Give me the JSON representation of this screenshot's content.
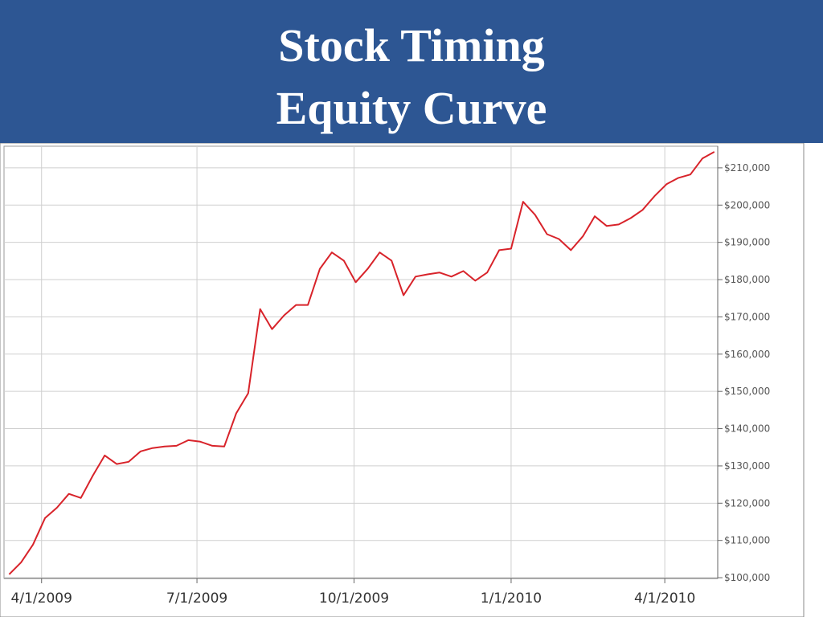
{
  "slide": {
    "title_lines": [
      "Stock Timing",
      "Equity Curve"
    ]
  },
  "chart_data": {
    "type": "line",
    "color": "#d8232a",
    "grid": true,
    "y_axis_side": "right",
    "x": [
      "2009-03-13",
      "2009-03-20",
      "2009-03-27",
      "2009-04-03",
      "2009-04-10",
      "2009-04-17",
      "2009-04-24",
      "2009-05-01",
      "2009-05-08",
      "2009-05-15",
      "2009-05-22",
      "2009-05-29",
      "2009-06-05",
      "2009-06-12",
      "2009-06-19",
      "2009-06-26",
      "2009-07-03",
      "2009-07-10",
      "2009-07-17",
      "2009-07-24",
      "2009-07-31",
      "2009-08-07",
      "2009-08-14",
      "2009-08-21",
      "2009-08-28",
      "2009-09-04",
      "2009-09-11",
      "2009-09-18",
      "2009-09-25",
      "2009-10-02",
      "2009-10-09",
      "2009-10-16",
      "2009-10-23",
      "2009-10-30",
      "2009-11-06",
      "2009-11-13",
      "2009-11-20",
      "2009-11-27",
      "2009-12-04",
      "2009-12-11",
      "2009-12-18",
      "2009-12-25",
      "2010-01-01",
      "2010-01-08",
      "2010-01-15",
      "2010-01-22",
      "2010-01-29",
      "2010-02-05",
      "2010-02-12",
      "2010-02-19",
      "2010-02-26",
      "2010-03-05",
      "2010-03-12",
      "2010-03-19",
      "2010-03-26",
      "2010-04-02",
      "2010-04-09",
      "2010-04-16",
      "2010-04-23",
      "2010-04-30"
    ],
    "values": [
      100900,
      104100,
      108900,
      116000,
      118800,
      122500,
      121400,
      127400,
      132800,
      130500,
      131100,
      133900,
      134800,
      135200,
      135400,
      136900,
      136500,
      135400,
      135200,
      144100,
      149500,
      172100,
      166700,
      170400,
      173200,
      173200,
      182900,
      187300,
      185100,
      179300,
      182900,
      187300,
      185100,
      175800,
      180800,
      181400,
      181900,
      180800,
      182300,
      179700,
      181900,
      187900,
      188300,
      200900,
      197400,
      192200,
      190900,
      187900,
      191600,
      197000,
      194400,
      194800,
      196500,
      198700,
      202400,
      205600,
      207300,
      208200,
      212500,
      214300
    ],
    "xlim": [
      "2009-03-10",
      "2010-05-02"
    ],
    "xticks": [
      {
        "value": "2009-04-01",
        "label": "4/1/2009"
      },
      {
        "value": "2009-07-01",
        "label": "7/1/2009"
      },
      {
        "value": "2009-10-01",
        "label": "10/1/2009"
      },
      {
        "value": "2010-01-01",
        "label": "1/1/2010"
      },
      {
        "value": "2010-04-01",
        "label": "4/1/2010"
      }
    ],
    "ylim": [
      99800,
      215800
    ],
    "yticks": [
      {
        "value": 100000,
        "label": "$100,000"
      },
      {
        "value": 110000,
        "label": "$110,000"
      },
      {
        "value": 120000,
        "label": "$120,000"
      },
      {
        "value": 130000,
        "label": "$130,000"
      },
      {
        "value": 140000,
        "label": "$140,000"
      },
      {
        "value": 150000,
        "label": "$150,000"
      },
      {
        "value": 160000,
        "label": "$160,000"
      },
      {
        "value": 170000,
        "label": "$170,000"
      },
      {
        "value": 180000,
        "label": "$180,000"
      },
      {
        "value": 190000,
        "label": "$190,000"
      },
      {
        "value": 200000,
        "label": "$200,000"
      },
      {
        "value": 210000,
        "label": "$210,000"
      }
    ]
  }
}
